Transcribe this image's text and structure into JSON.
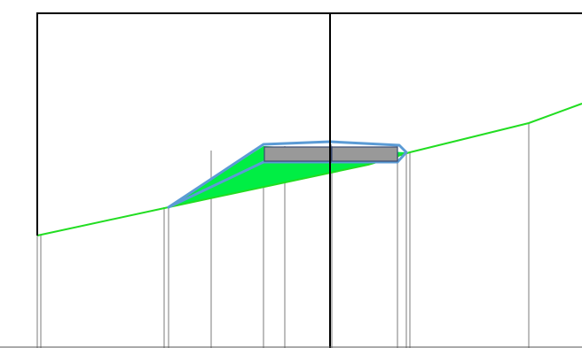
{
  "diagram": {
    "type": "road cross-section profile",
    "colors": {
      "background": "#ffffff",
      "frame": "#000000",
      "ground_line": "#22dd22",
      "fill_area": "#00ee44",
      "pavement_outline": "#5b9bd5",
      "slab_fill": "#999999",
      "slab_border": "#3a4a70",
      "station_lines": "#bdbdbd",
      "datum_line": "#555555"
    }
  }
}
